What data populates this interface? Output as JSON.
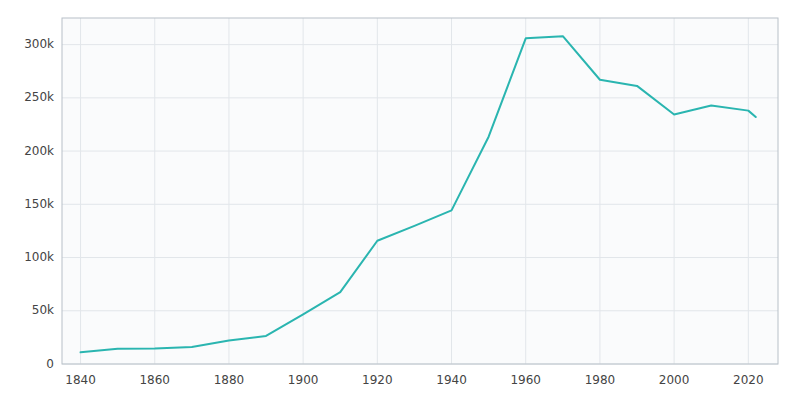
{
  "chart_data": {
    "type": "line",
    "x": [
      1840,
      1850,
      1860,
      1870,
      1880,
      1890,
      1900,
      1910,
      1920,
      1930,
      1940,
      1950,
      1960,
      1970,
      1980,
      1990,
      2000,
      2010,
      2020,
      2022
    ],
    "values": [
      10920,
      14326,
      14620,
      16000,
      21966,
      26357,
      46624,
      67452,
      115777,
      129710,
      144332,
      213513,
      305872,
      307951,
      266979,
      261229,
      234403,
      242803,
      238005,
      232000
    ],
    "color": "#2ab5b0",
    "xlim": [
      1835,
      2028
    ],
    "ylim": [
      0,
      325000
    ],
    "xticks": [
      1840,
      1860,
      1880,
      1900,
      1920,
      1940,
      1960,
      1980,
      2000,
      2020
    ],
    "yticks": [
      0,
      {
        "value": 50000,
        "label": "50k"
      },
      {
        "value": 100000,
        "label": "100k"
      },
      {
        "value": 150000,
        "label": "150k"
      },
      {
        "value": 200000,
        "label": "200k"
      },
      {
        "value": 250000,
        "label": "250k"
      },
      {
        "value": 300000,
        "label": "300k"
      }
    ],
    "grid": true
  }
}
